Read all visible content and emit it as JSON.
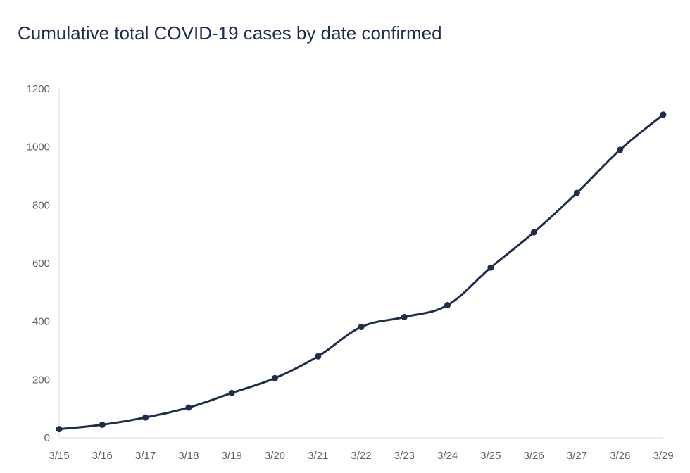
{
  "chart_data": {
    "type": "line",
    "title": "Cumulative total COVID-19 cases by date confirmed",
    "xlabel": "",
    "ylabel": "",
    "categories": [
      "3/15",
      "3/16",
      "3/17",
      "3/18",
      "3/19",
      "3/20",
      "3/21",
      "3/22",
      "3/23",
      "3/24",
      "3/25",
      "3/26",
      "3/27",
      "3/28",
      "3/29"
    ],
    "series": [
      {
        "values": [
          30,
          45,
          70,
          104,
          154,
          205,
          280,
          381,
          415,
          456,
          585,
          706,
          842,
          990,
          1111
        ]
      }
    ],
    "ylim": [
      0,
      1200
    ],
    "yticks": [
      0,
      200,
      400,
      600,
      800,
      1000,
      1200
    ],
    "grid": false,
    "legend": "none",
    "colors": {
      "line": "#1f2d4d",
      "tick_text": "#5f5f5f",
      "axis": "#dddddd"
    }
  }
}
